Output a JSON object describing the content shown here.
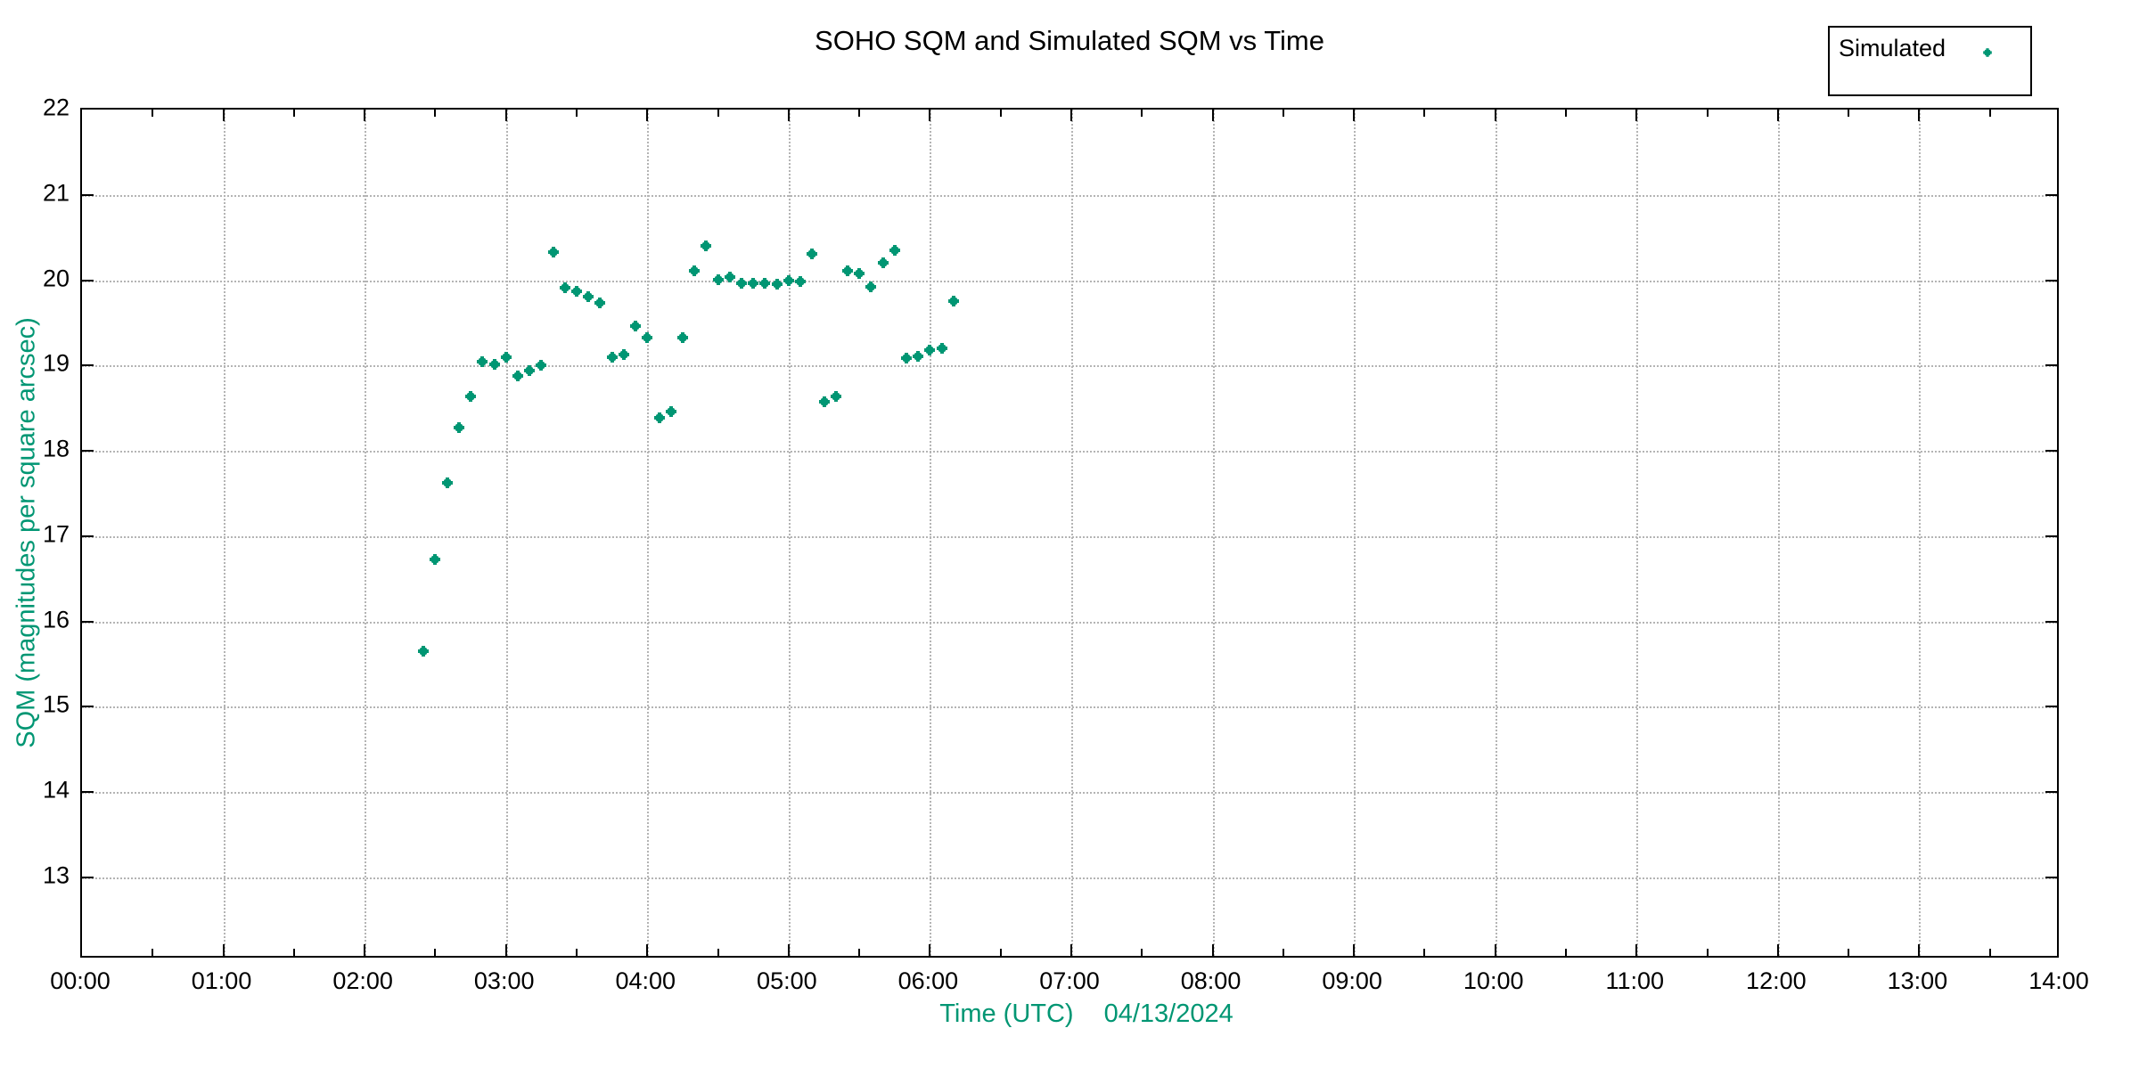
{
  "title": "SOHO SQM and Simulated SQM vs Time",
  "axes": {
    "xlabel": "Time (UTC)",
    "date_label": "04/13/2024",
    "ylabel": "SQM (magnitudes per square arcsec)",
    "x_tick_labels": [
      "00:00",
      "01:00",
      "02:00",
      "03:00",
      "04:00",
      "05:00",
      "06:00",
      "07:00",
      "08:00",
      "09:00",
      "10:00",
      "11:00",
      "12:00",
      "13:00",
      "14:00"
    ],
    "y_tick_labels": [
      "13",
      "14",
      "15",
      "16",
      "17",
      "18",
      "19",
      "20",
      "21",
      "22"
    ]
  },
  "legend": {
    "label": "Simulated",
    "marker": "filled-square-dot"
  },
  "colors": {
    "accent_teal": "#009673",
    "grid_gray": "#b4b4b4",
    "axis_black": "#000000",
    "background": "#ffffff"
  },
  "chart_data": {
    "type": "scatter",
    "title": "SOHO SQM and Simulated SQM vs Time",
    "xlabel": "Time (UTC)   04/13/2024",
    "ylabel": "SQM (magnitudes per square arcsec)",
    "xlim_hours": [
      0,
      14
    ],
    "ylim": [
      12.04,
      22
    ],
    "x_major_tick_hours": 1,
    "x_minor_tick_hours": 0.5,
    "y_major_tick": 1,
    "grid": "dotted-gray-at-major-ticks",
    "legend_position": "top-right-above-plot",
    "series": [
      {
        "name": "Simulated",
        "color": "#009673",
        "marker": "filled-square",
        "times_utc": [
          "02:25",
          "02:30",
          "02:35",
          "02:40",
          "02:45",
          "02:50",
          "02:55",
          "03:00",
          "03:05",
          "03:10",
          "03:15",
          "03:20",
          "03:25",
          "03:30",
          "03:35",
          "03:40",
          "03:45",
          "03:50",
          "03:55",
          "04:00",
          "04:05",
          "04:10",
          "04:15",
          "04:20",
          "04:25",
          "04:30",
          "04:35",
          "04:40",
          "04:45",
          "04:50",
          "04:55",
          "05:00",
          "05:05",
          "05:10",
          "05:15",
          "05:20",
          "05:25",
          "05:30",
          "05:35",
          "05:40",
          "05:45",
          "05:50",
          "05:55",
          "06:00",
          "06:05",
          "06:10"
        ],
        "sqm_values": [
          15.65,
          16.73,
          17.63,
          18.27,
          18.64,
          19.05,
          19.01,
          19.1,
          18.88,
          18.94,
          19.0,
          20.33,
          19.91,
          19.87,
          19.81,
          19.73,
          19.1,
          19.13,
          19.46,
          19.33,
          18.39,
          18.46,
          19.33,
          20.11,
          20.4,
          20.01,
          20.04,
          19.96,
          19.96,
          19.96,
          19.95,
          20.0,
          19.98,
          20.31,
          18.58,
          18.64,
          20.11,
          20.08,
          19.92,
          20.2,
          20.35,
          19.09,
          19.11,
          19.18,
          19.2,
          19.76
        ]
      }
    ]
  }
}
